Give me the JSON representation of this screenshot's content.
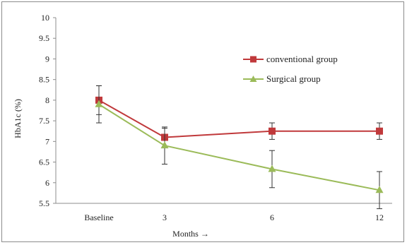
{
  "chart_data": {
    "type": "line",
    "title": "",
    "xlabel": "Months →",
    "ylabel": "HbA1c (%)",
    "categories": [
      "Baseline",
      "3",
      "6",
      "12"
    ],
    "ylim": [
      5.5,
      10
    ],
    "yticks": [
      "5.5",
      "6",
      "6.5",
      "7",
      "7.5",
      "8",
      "8.5",
      "9",
      "9.5",
      "10"
    ],
    "grid": false,
    "legend_placement": "upper-right",
    "series": [
      {
        "name": "conventional group",
        "values": [
          8.0,
          7.1,
          7.25,
          7.25
        ],
        "error": [
          0.35,
          0.22,
          0.2,
          0.2
        ],
        "color": "#c0393b",
        "marker": "square"
      },
      {
        "name": "Surgical group",
        "values": [
          7.9,
          6.9,
          6.33,
          5.82
        ],
        "error": [
          0.45,
          0.45,
          0.45,
          0.45
        ],
        "color": "#9bbb59",
        "marker": "triangle"
      }
    ]
  }
}
